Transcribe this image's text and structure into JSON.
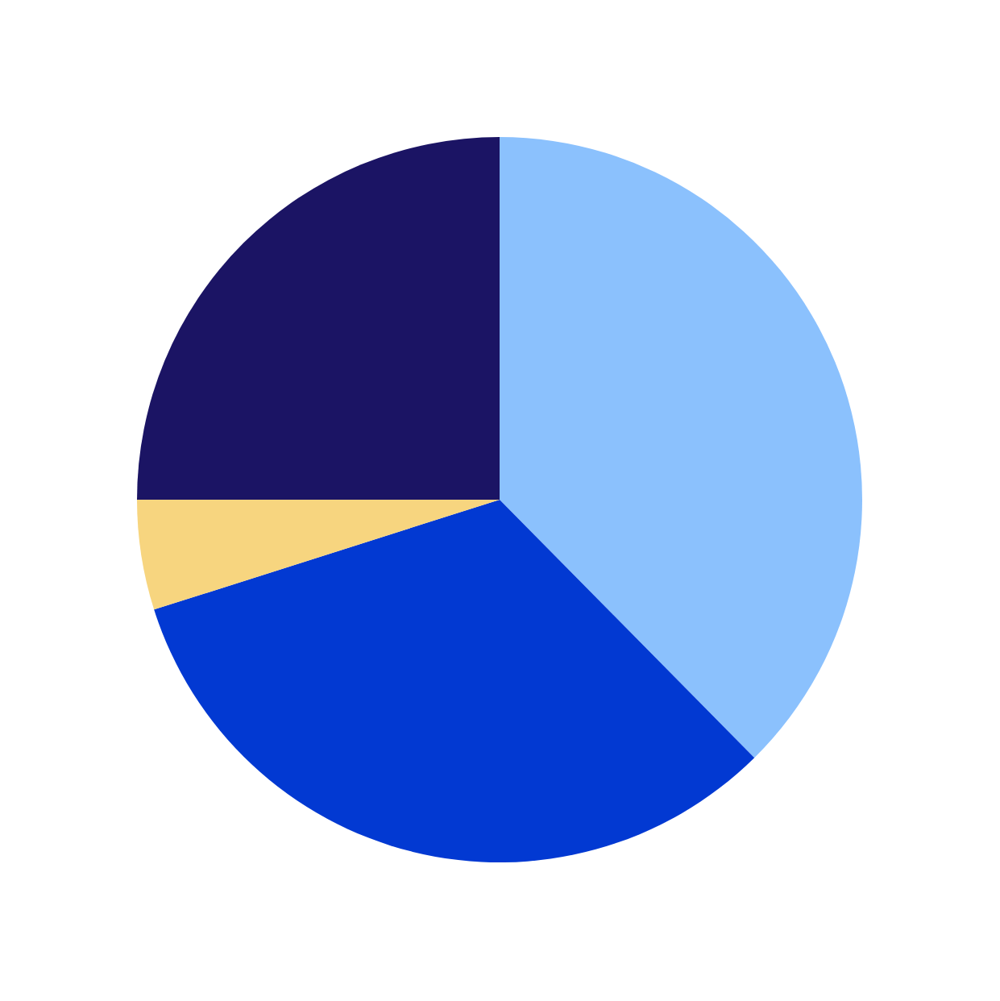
{
  "chart_data": {
    "type": "pie",
    "categories": [
      null,
      null,
      null,
      null
    ],
    "values": [
      37.6,
      32.5,
      4.9,
      25
    ],
    "colors": [
      "#8bc1fd",
      "#0239d2",
      "#f7d57f",
      "#1b1464"
    ]
  }
}
